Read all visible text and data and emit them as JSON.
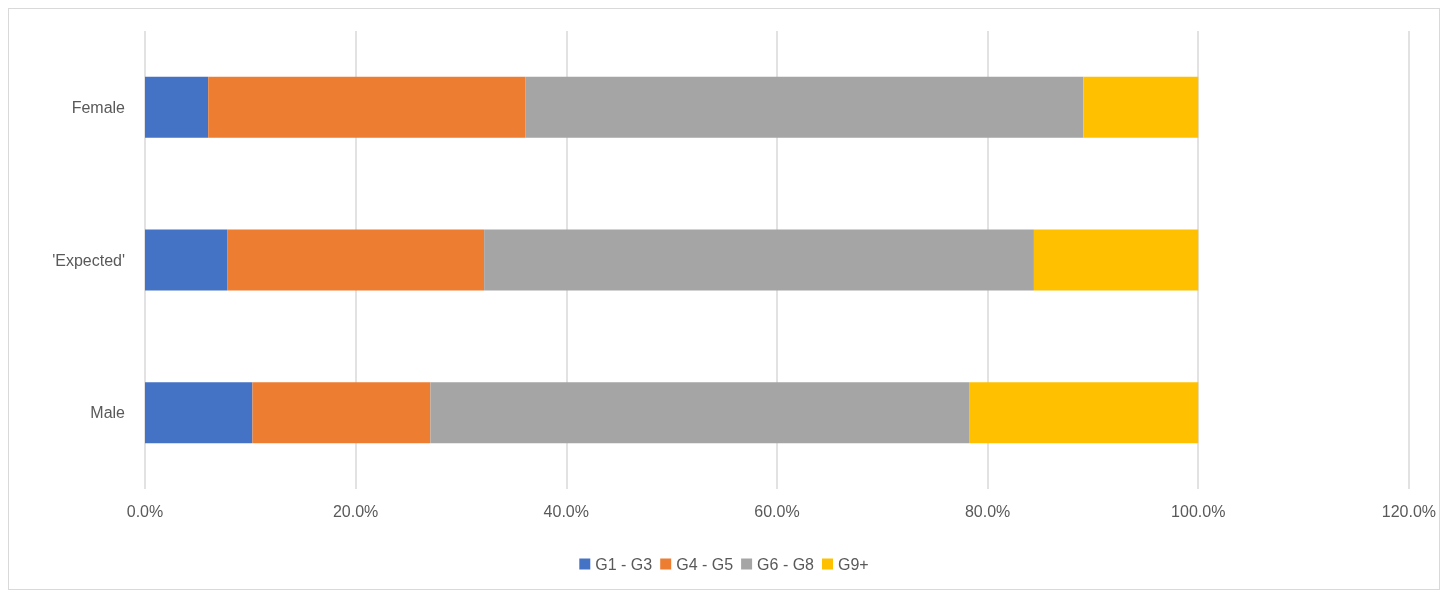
{
  "chart_data": {
    "type": "bar",
    "orientation": "horizontal",
    "stacked": true,
    "categories": [
      "Female",
      "'Expected'",
      "Male"
    ],
    "series": [
      {
        "name": "G1 - G3",
        "color": "#4472c4",
        "values": [
          6.0,
          7.8,
          10.2
        ]
      },
      {
        "name": "G4 - G5",
        "color": "#ed7d31",
        "values": [
          30.1,
          24.4,
          16.9
        ]
      },
      {
        "name": "G6 - G8",
        "color": "#a5a5a5",
        "values": [
          53.0,
          52.2,
          51.2
        ]
      },
      {
        "name": "G9+",
        "color": "#ffc000",
        "values": [
          10.9,
          15.6,
          21.7
        ]
      }
    ],
    "xlim": [
      0,
      120
    ],
    "xticks": [
      {
        "value": 0,
        "label": "0.0%"
      },
      {
        "value": 20,
        "label": "20.0%"
      },
      {
        "value": 40,
        "label": "40.0%"
      },
      {
        "value": 60,
        "label": "60.0%"
      },
      {
        "value": 80,
        "label": "80.0%"
      },
      {
        "value": 100,
        "label": "100.0%"
      },
      {
        "value": 120,
        "label": "120.0%"
      }
    ],
    "grid": "x",
    "legend": "bottom"
  }
}
